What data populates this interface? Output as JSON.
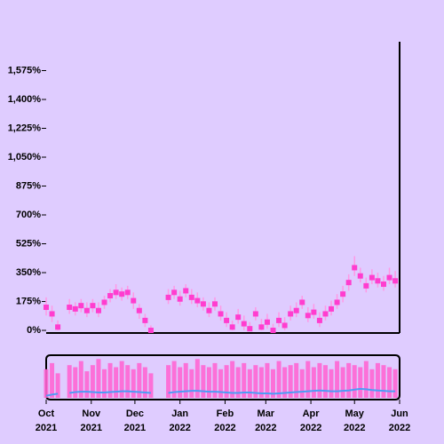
{
  "chart_data": {
    "type": "candlestick",
    "x": [
      "2021-10-01",
      "2021-10-05",
      "2021-10-09",
      "2021-10-13",
      "2021-10-17",
      "2021-10-21",
      "2021-10-25",
      "2021-10-29",
      "2021-11-02",
      "2021-11-06",
      "2021-11-10",
      "2021-11-14",
      "2021-11-18",
      "2021-11-22",
      "2021-11-26",
      "2021-11-30",
      "2021-12-04",
      "2021-12-08",
      "2021-12-12",
      "2021-12-16",
      "2021-12-20",
      "2021-12-24",
      "2021-12-28",
      "2022-01-01",
      "2022-01-05",
      "2022-01-09",
      "2022-01-13",
      "2022-01-17",
      "2022-01-21",
      "2022-01-25",
      "2022-01-29",
      "2022-02-02",
      "2022-02-06",
      "2022-02-10",
      "2022-02-14",
      "2022-02-18",
      "2022-02-22",
      "2022-02-26",
      "2022-03-02",
      "2022-03-06",
      "2022-03-10",
      "2022-03-14",
      "2022-03-18",
      "2022-03-22",
      "2022-03-26",
      "2022-03-30",
      "2022-04-03",
      "2022-04-07",
      "2022-04-11",
      "2022-04-15",
      "2022-04-19",
      "2022-04-23",
      "2022-04-27",
      "2022-05-01",
      "2022-05-05",
      "2022-05-09",
      "2022-05-13",
      "2022-05-17",
      "2022-05-21",
      "2022-05-25",
      "2022-05-29"
    ],
    "close": [
      140,
      100,
      20,
      null,
      140,
      130,
      150,
      120,
      150,
      120,
      170,
      210,
      230,
      220,
      230,
      180,
      120,
      60,
      0,
      null,
      null,
      200,
      230,
      190,
      240,
      200,
      180,
      160,
      120,
      160,
      100,
      60,
      20,
      80,
      40,
      10,
      100,
      20,
      50,
      0,
      60,
      30,
      100,
      120,
      170,
      90,
      110,
      60,
      100,
      130,
      170,
      220,
      290,
      380,
      330,
      270,
      320,
      300,
      280,
      320,
      300
    ],
    "high": [
      200,
      150,
      60,
      null,
      190,
      170,
      190,
      170,
      190,
      170,
      210,
      250,
      280,
      260,
      270,
      230,
      160,
      100,
      30,
      null,
      null,
      250,
      270,
      240,
      280,
      250,
      230,
      200,
      170,
      200,
      150,
      110,
      60,
      130,
      90,
      50,
      140,
      70,
      100,
      40,
      110,
      80,
      150,
      170,
      210,
      140,
      160,
      110,
      150,
      180,
      220,
      270,
      340,
      450,
      380,
      320,
      370,
      350,
      330,
      380,
      360
    ],
    "low": [
      90,
      50,
      0,
      null,
      100,
      90,
      110,
      80,
      110,
      80,
      130,
      170,
      190,
      180,
      190,
      130,
      70,
      20,
      0,
      null,
      null,
      160,
      190,
      150,
      200,
      160,
      140,
      120,
      80,
      120,
      60,
      20,
      0,
      40,
      0,
      0,
      60,
      0,
      10,
      0,
      20,
      0,
      60,
      80,
      130,
      50,
      70,
      20,
      60,
      90,
      130,
      170,
      240,
      330,
      290,
      230,
      280,
      260,
      240,
      280,
      260
    ],
    "volume": [
      70,
      85,
      60,
      null,
      80,
      75,
      90,
      65,
      80,
      95,
      70,
      85,
      75,
      90,
      80,
      70,
      85,
      75,
      60,
      null,
      null,
      80,
      90,
      75,
      85,
      70,
      95,
      80,
      75,
      85,
      70,
      80,
      90,
      75,
      85,
      70,
      80,
      75,
      85,
      70,
      90,
      75,
      80,
      85,
      70,
      90,
      75,
      85,
      80,
      70,
      90,
      75,
      85,
      80,
      75,
      90,
      70,
      85,
      80,
      75,
      70
    ],
    "volume_ma": [
      5,
      8,
      10,
      null,
      12,
      14,
      15,
      15,
      14,
      13,
      13,
      14,
      15,
      16,
      16,
      15,
      14,
      13,
      12,
      null,
      null,
      12,
      14,
      15,
      16,
      17,
      17,
      16,
      15,
      15,
      14,
      13,
      12,
      12,
      13,
      13,
      12,
      11,
      11,
      10,
      11,
      12,
      13,
      14,
      15,
      16,
      17,
      18,
      17,
      16,
      16,
      17,
      18,
      20,
      22,
      21,
      19,
      18,
      17,
      16,
      16
    ],
    "candle_color": "#ff3dcf",
    "wick_color": "#ff99e6",
    "volume_color": "#ff66d4",
    "ma_color": "#4d9cf5",
    "xlim": [
      "2021-10-01",
      "2022-06-01"
    ],
    "ylim": [
      -16,
      1750
    ],
    "volume_ylim": [
      0,
      100
    ],
    "yticks": [
      {
        "value": 0,
        "label": "0%"
      },
      {
        "value": 175,
        "label": "175%"
      },
      {
        "value": 350,
        "label": "350%"
      },
      {
        "value": 525,
        "label": "525%"
      },
      {
        "value": 700,
        "label": "700%"
      },
      {
        "value": 875,
        "label": "875%"
      },
      {
        "value": 1050,
        "label": "1,050%"
      },
      {
        "value": 1225,
        "label": "1,225%"
      },
      {
        "value": 1400,
        "label": "1,400%"
      },
      {
        "value": 1575,
        "label": "1,575%"
      }
    ],
    "xticks": [
      {
        "value": "2021-10-01",
        "label": "Oct 2021"
      },
      {
        "value": "2021-11-01",
        "label": "Nov 2021"
      },
      {
        "value": "2021-12-01",
        "label": "Dec 2021"
      },
      {
        "value": "2022-01-01",
        "label": "Jan 2022"
      },
      {
        "value": "2022-02-01",
        "label": "Feb 2022"
      },
      {
        "value": "2022-03-01",
        "label": "Mar 2022"
      },
      {
        "value": "2022-04-01",
        "label": "Apr 2022"
      },
      {
        "value": "2022-05-01",
        "label": "May 2022"
      },
      {
        "value": "2022-06-01",
        "label": "Jun 2022"
      }
    ]
  }
}
